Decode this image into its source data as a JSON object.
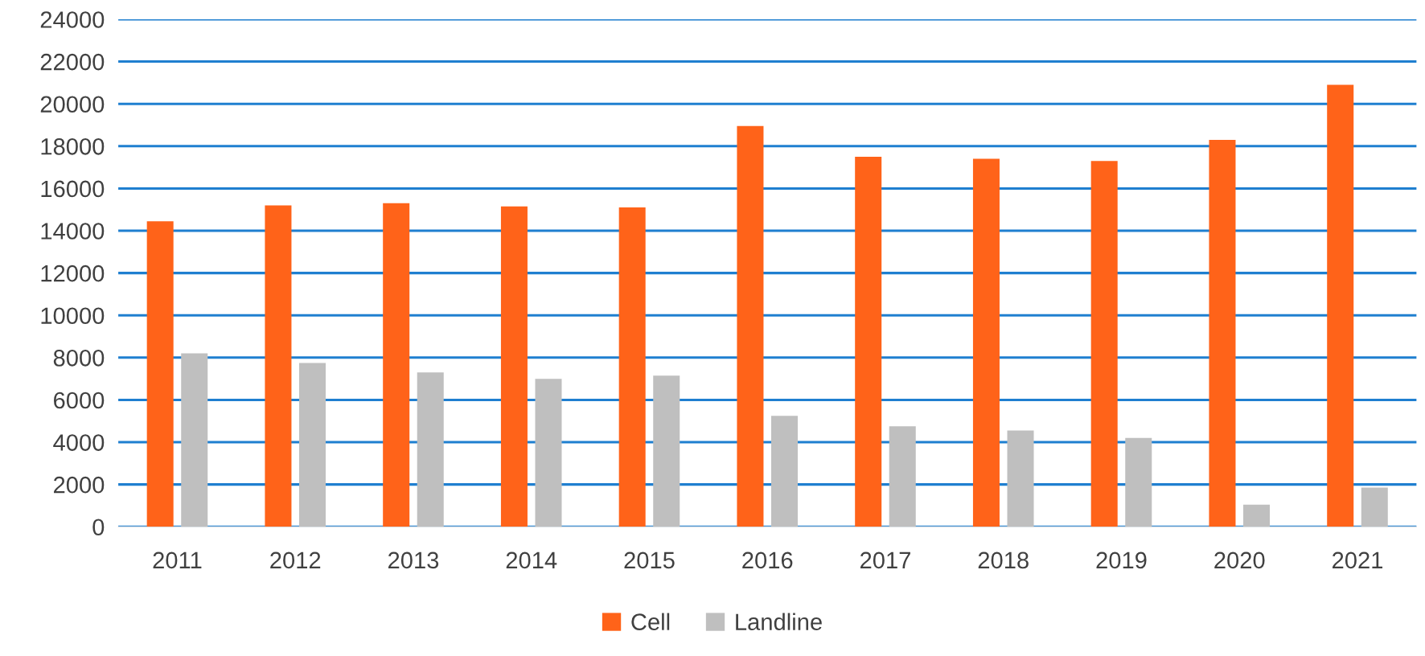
{
  "chart_data": {
    "type": "bar",
    "categories": [
      "2011",
      "2012",
      "2013",
      "2014",
      "2015",
      "2016",
      "2017",
      "2018",
      "2019",
      "2020",
      "2021"
    ],
    "series": [
      {
        "name": "Cell",
        "color": "#ff6319",
        "values": [
          14450,
          15200,
          15300,
          15150,
          15100,
          18950,
          17500,
          17400,
          17300,
          18300,
          20900
        ]
      },
      {
        "name": "Landline",
        "color": "#bfbfbf",
        "values": [
          8200,
          7750,
          7300,
          7000,
          7150,
          5250,
          4750,
          4550,
          4200,
          1050,
          1850
        ]
      }
    ],
    "ylim": [
      0,
      24000
    ],
    "yticks": [
      0,
      2000,
      4000,
      6000,
      8000,
      10000,
      12000,
      14000,
      16000,
      18000,
      20000,
      22000,
      24000
    ],
    "grid": "y",
    "legend": "bottom"
  }
}
